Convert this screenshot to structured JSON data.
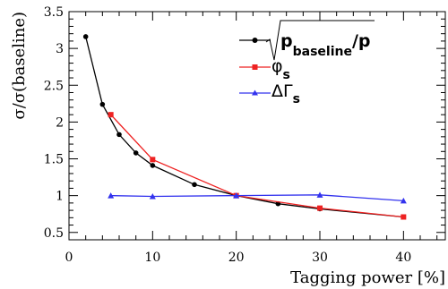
{
  "chart_data": {
    "type": "line",
    "xlabel": "Tagging power [%]",
    "ylabel": "σ/σ(baseline)",
    "xlim": [
      0,
      45
    ],
    "ylim": [
      0.4,
      3.5
    ],
    "xticks": [
      "0",
      "10",
      "20",
      "30",
      "40"
    ],
    "yticks": [
      "0.5",
      "1",
      "1.5",
      "2",
      "2.5",
      "3",
      "3.5"
    ],
    "grid": false,
    "legend_position": "top-right",
    "series": [
      {
        "name": "√(p_baseline/p)",
        "color": "#000000",
        "marker": "circle",
        "x": [
          2,
          4,
          6,
          8,
          10,
          15,
          20,
          25,
          30,
          40
        ],
        "y": [
          3.16,
          2.24,
          1.83,
          1.58,
          1.41,
          1.15,
          1.0,
          0.89,
          0.82,
          0.71
        ]
      },
      {
        "name": "φs",
        "color": "#ee2222",
        "marker": "square",
        "x": [
          5,
          10,
          20,
          30,
          40
        ],
        "y": [
          2.1,
          1.49,
          1.0,
          0.83,
          0.71
        ]
      },
      {
        "name": "ΔΓs",
        "color": "#3333ee",
        "marker": "triangle",
        "x": [
          5,
          10,
          20,
          30,
          40
        ],
        "y": [
          1.0,
          0.99,
          1.0,
          1.01,
          0.93
        ]
      }
    ]
  },
  "legend": {
    "sqrt_num": "p",
    "sqrt_sub": "baseline",
    "sqrt_den": "/p",
    "phi_main": "φ",
    "phi_sub": "s",
    "dg_main": "ΔΓ",
    "dg_sub": "s"
  }
}
